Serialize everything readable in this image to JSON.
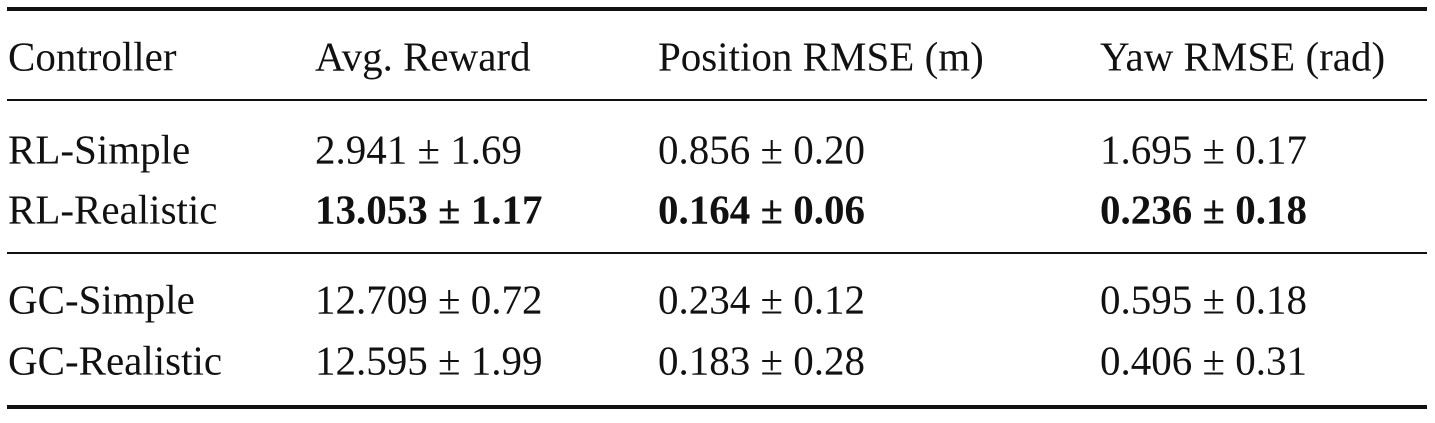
{
  "table": {
    "columns": [
      "Controller",
      "Avg. Reward",
      "Position RMSE (m)",
      "Yaw RMSE (rad)"
    ],
    "rows": [
      [
        "RL-Simple",
        "2.941 ± 1.69",
        "0.856 ± 0.20",
        "1.695 ± 0.17"
      ],
      [
        "RL-Realistic",
        "13.053 ± 1.17",
        "0.164 ± 0.06",
        "0.236 ± 0.18"
      ],
      [
        "GC-Simple",
        "12.709 ± 0.72",
        "0.234 ± 0.12",
        "0.595 ± 0.18"
      ],
      [
        "GC-Realistic",
        "12.595 ± 1.99",
        "0.183 ± 0.28",
        "0.406 ± 0.31"
      ]
    ]
  }
}
